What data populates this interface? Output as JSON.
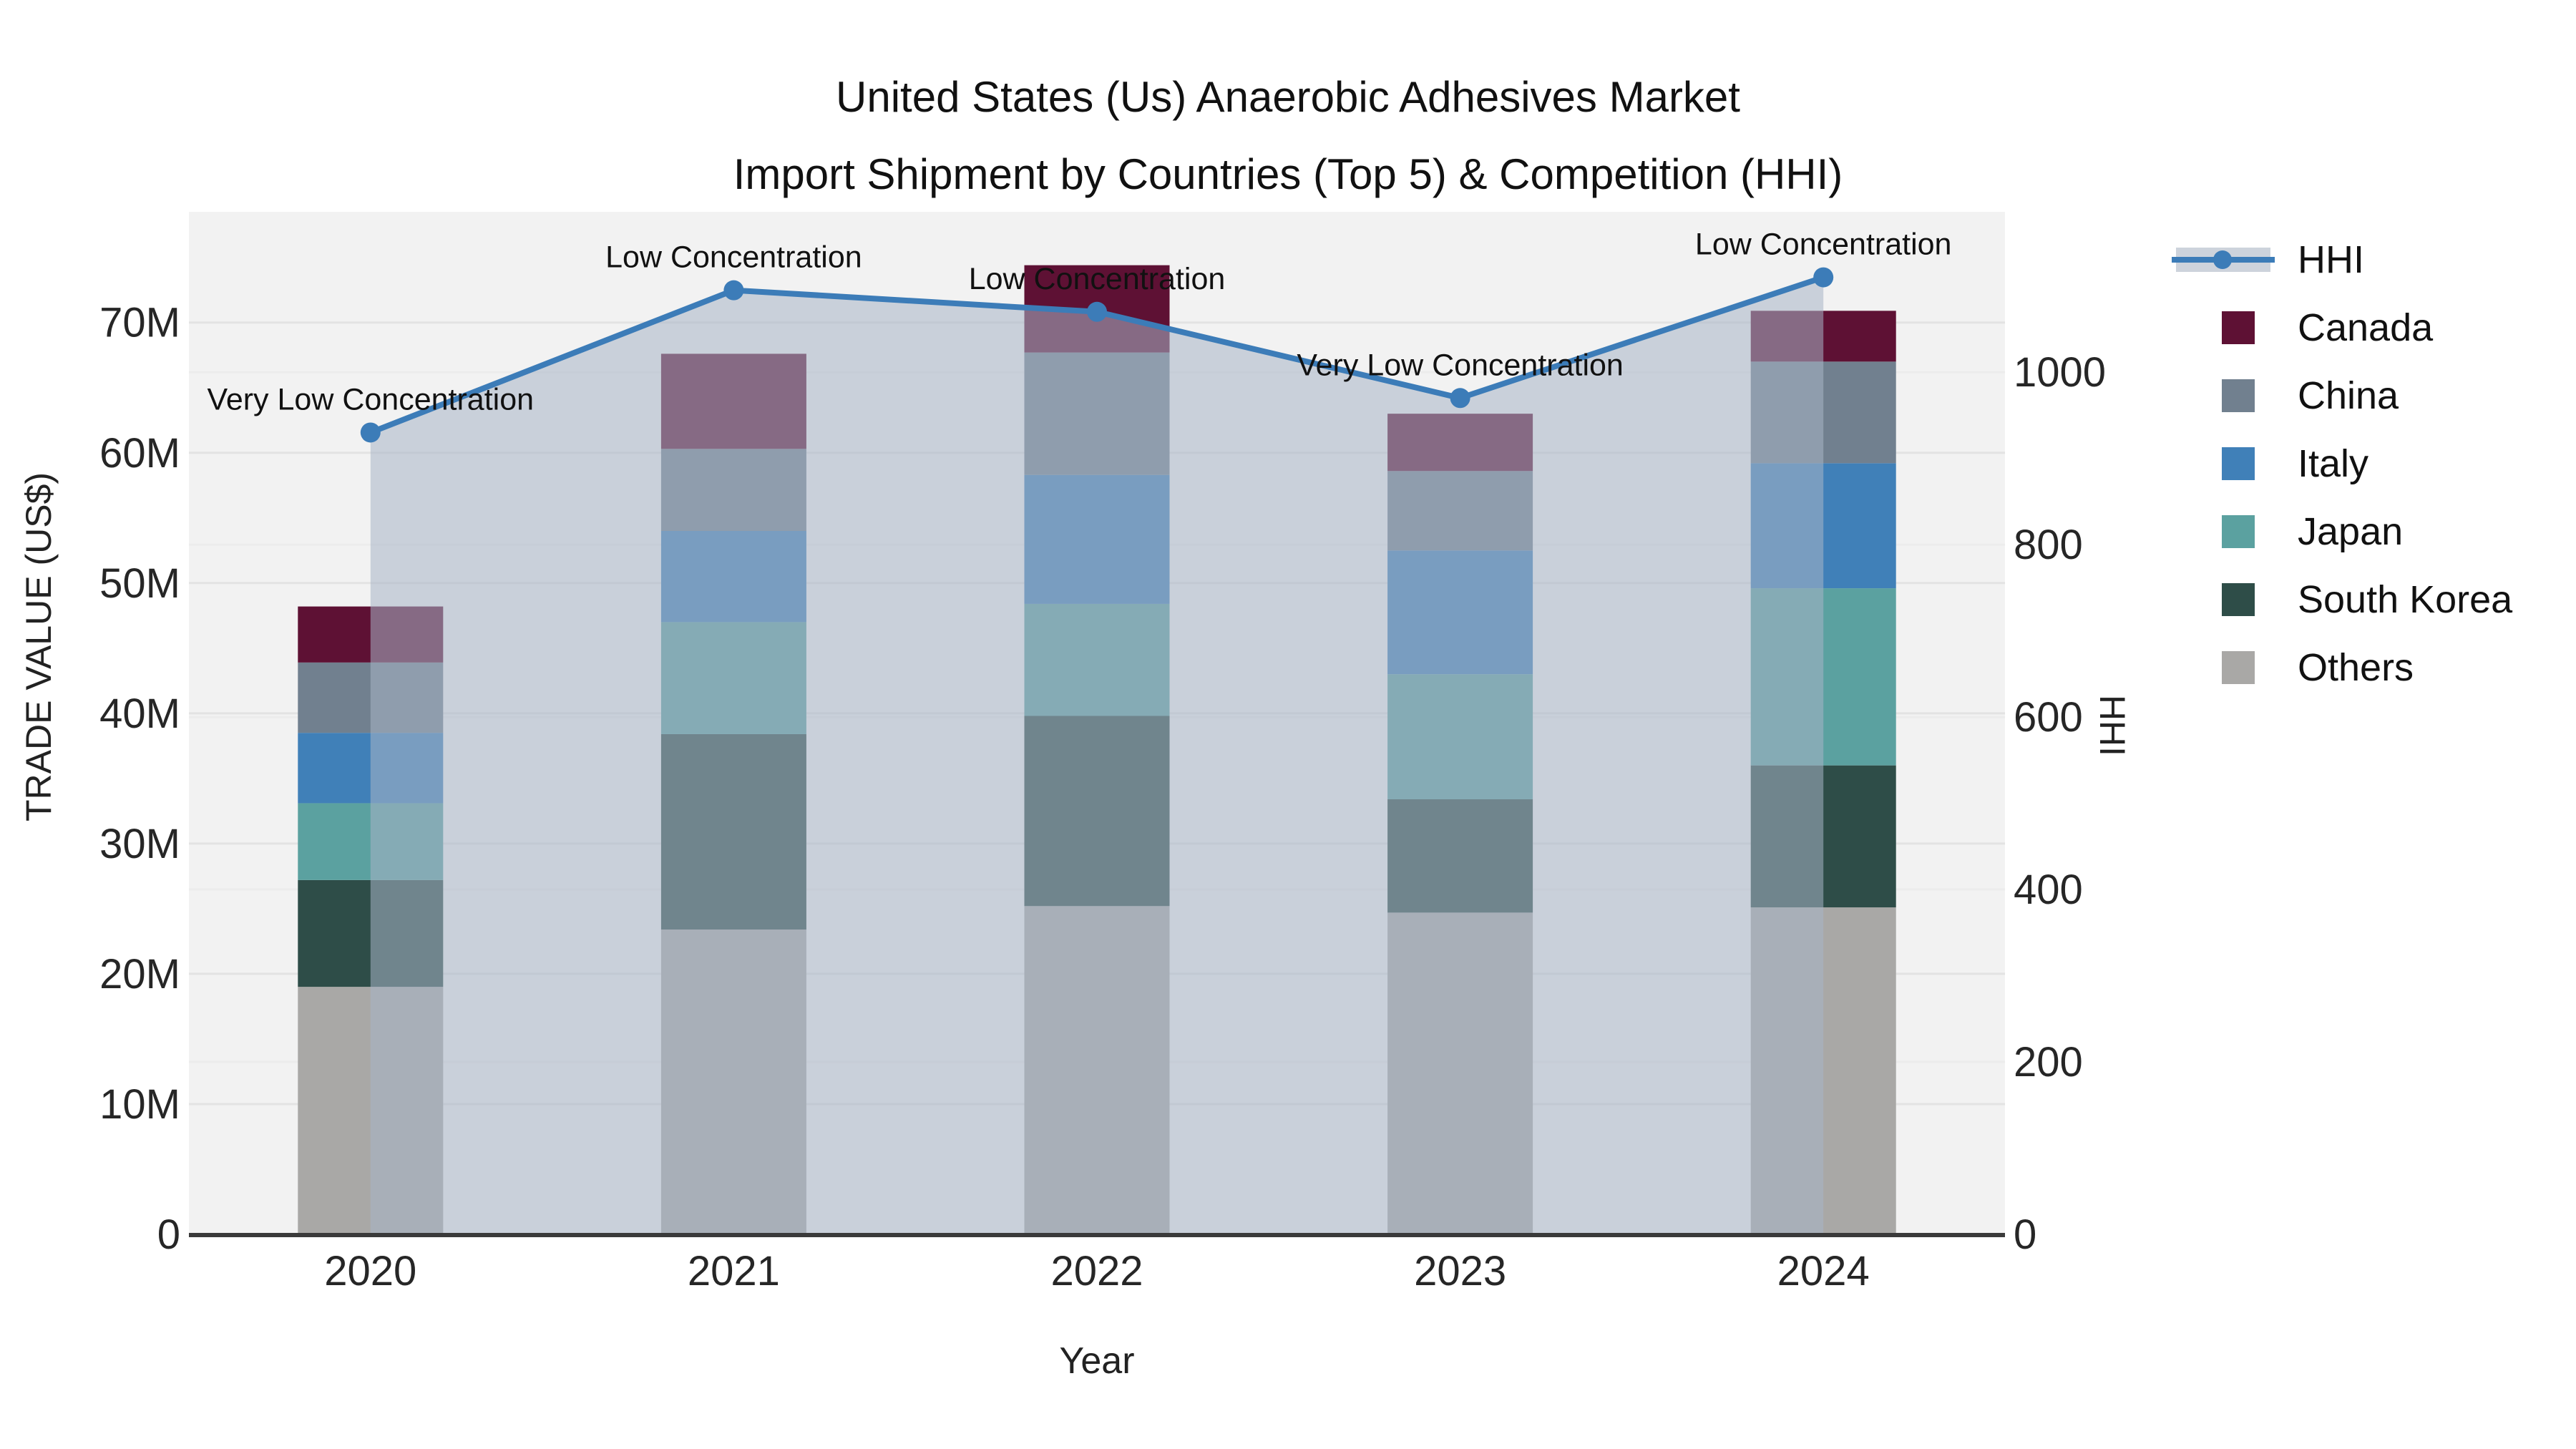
{
  "title": {
    "line1": "United States (Us) Anaerobic Adhesives Market",
    "line2": "Import Shipment by Countries (Top 5) & Competition (HHI)"
  },
  "chart_data": {
    "type": "stacked-bar+line",
    "title": "United States (Us) Anaerobic Adhesives Market Import Shipment by Countries (Top 5) & Competition (HHI)",
    "xlabel": "Year",
    "ylabel_left": "TRADE VALUE (US$)",
    "ylabel_right": "HHI",
    "categories": [
      "2020",
      "2021",
      "2022",
      "2023",
      "2024"
    ],
    "values_unit": "millions US$",
    "left_axis": {
      "max": 78.5,
      "ticks": [
        {
          "v": 0,
          "label": "0"
        },
        {
          "v": 10,
          "label": "10M"
        },
        {
          "v": 20,
          "label": "20M"
        },
        {
          "v": 30,
          "label": "30M"
        },
        {
          "v": 40,
          "label": "40M"
        },
        {
          "v": 50,
          "label": "50M"
        },
        {
          "v": 60,
          "label": "60M"
        },
        {
          "v": 70,
          "label": "70M"
        }
      ]
    },
    "right_axis": {
      "max": 1186,
      "ticks": [
        {
          "v": 0,
          "label": "0"
        },
        {
          "v": 200,
          "label": "200"
        },
        {
          "v": 400,
          "label": "400"
        },
        {
          "v": 600,
          "label": "600"
        },
        {
          "v": 800,
          "label": "800"
        },
        {
          "v": 1000,
          "label": "1000"
        }
      ]
    },
    "series": [
      {
        "name": "Others",
        "color": "#a9a8a6",
        "values": [
          19.0,
          23.4,
          25.2,
          24.7,
          25.1
        ]
      },
      {
        "name": "South Korea",
        "color": "#2e4d48",
        "values": [
          8.2,
          15.0,
          14.6,
          8.7,
          10.9
        ]
      },
      {
        "name": "Japan",
        "color": "#5ba1a0",
        "values": [
          5.9,
          8.6,
          8.6,
          9.6,
          13.6
        ]
      },
      {
        "name": "Italy",
        "color": "#4080b8",
        "values": [
          5.4,
          7.0,
          9.9,
          9.5,
          9.6
        ]
      },
      {
        "name": "China",
        "color": "#71808f",
        "values": [
          5.4,
          6.3,
          9.4,
          6.1,
          7.8
        ]
      },
      {
        "name": "Canada",
        "color": "#5e1134",
        "values": [
          4.3,
          7.3,
          6.7,
          4.4,
          3.9
        ]
      }
    ],
    "hhi": {
      "name": "HHI",
      "color": "#3c7cb8",
      "area_fill": "rgba(167,181,199,0.55)",
      "values": [
        930,
        1095,
        1070,
        970,
        1110
      ]
    },
    "annotations": [
      "Very Low Concentration",
      "Low Concentration",
      "Low Concentration",
      "Very Low Concentration",
      "Low Concentration"
    ],
    "legend": [
      {
        "label": "HHI",
        "type": "line",
        "color": "#3c7cb8"
      },
      {
        "label": "Canada",
        "type": "swatch",
        "color": "#5e1134"
      },
      {
        "label": "China",
        "type": "swatch",
        "color": "#71808f"
      },
      {
        "label": "Italy",
        "type": "swatch",
        "color": "#4080b8"
      },
      {
        "label": "Japan",
        "type": "swatch",
        "color": "#5ba1a0"
      },
      {
        "label": "South Korea",
        "type": "swatch",
        "color": "#2e4d48"
      },
      {
        "label": "Others",
        "type": "swatch",
        "color": "#a9a8a6"
      }
    ],
    "layout_hints": {
      "plot_background": "#f2f2f2",
      "grid": "on",
      "legend_position": "right"
    }
  }
}
